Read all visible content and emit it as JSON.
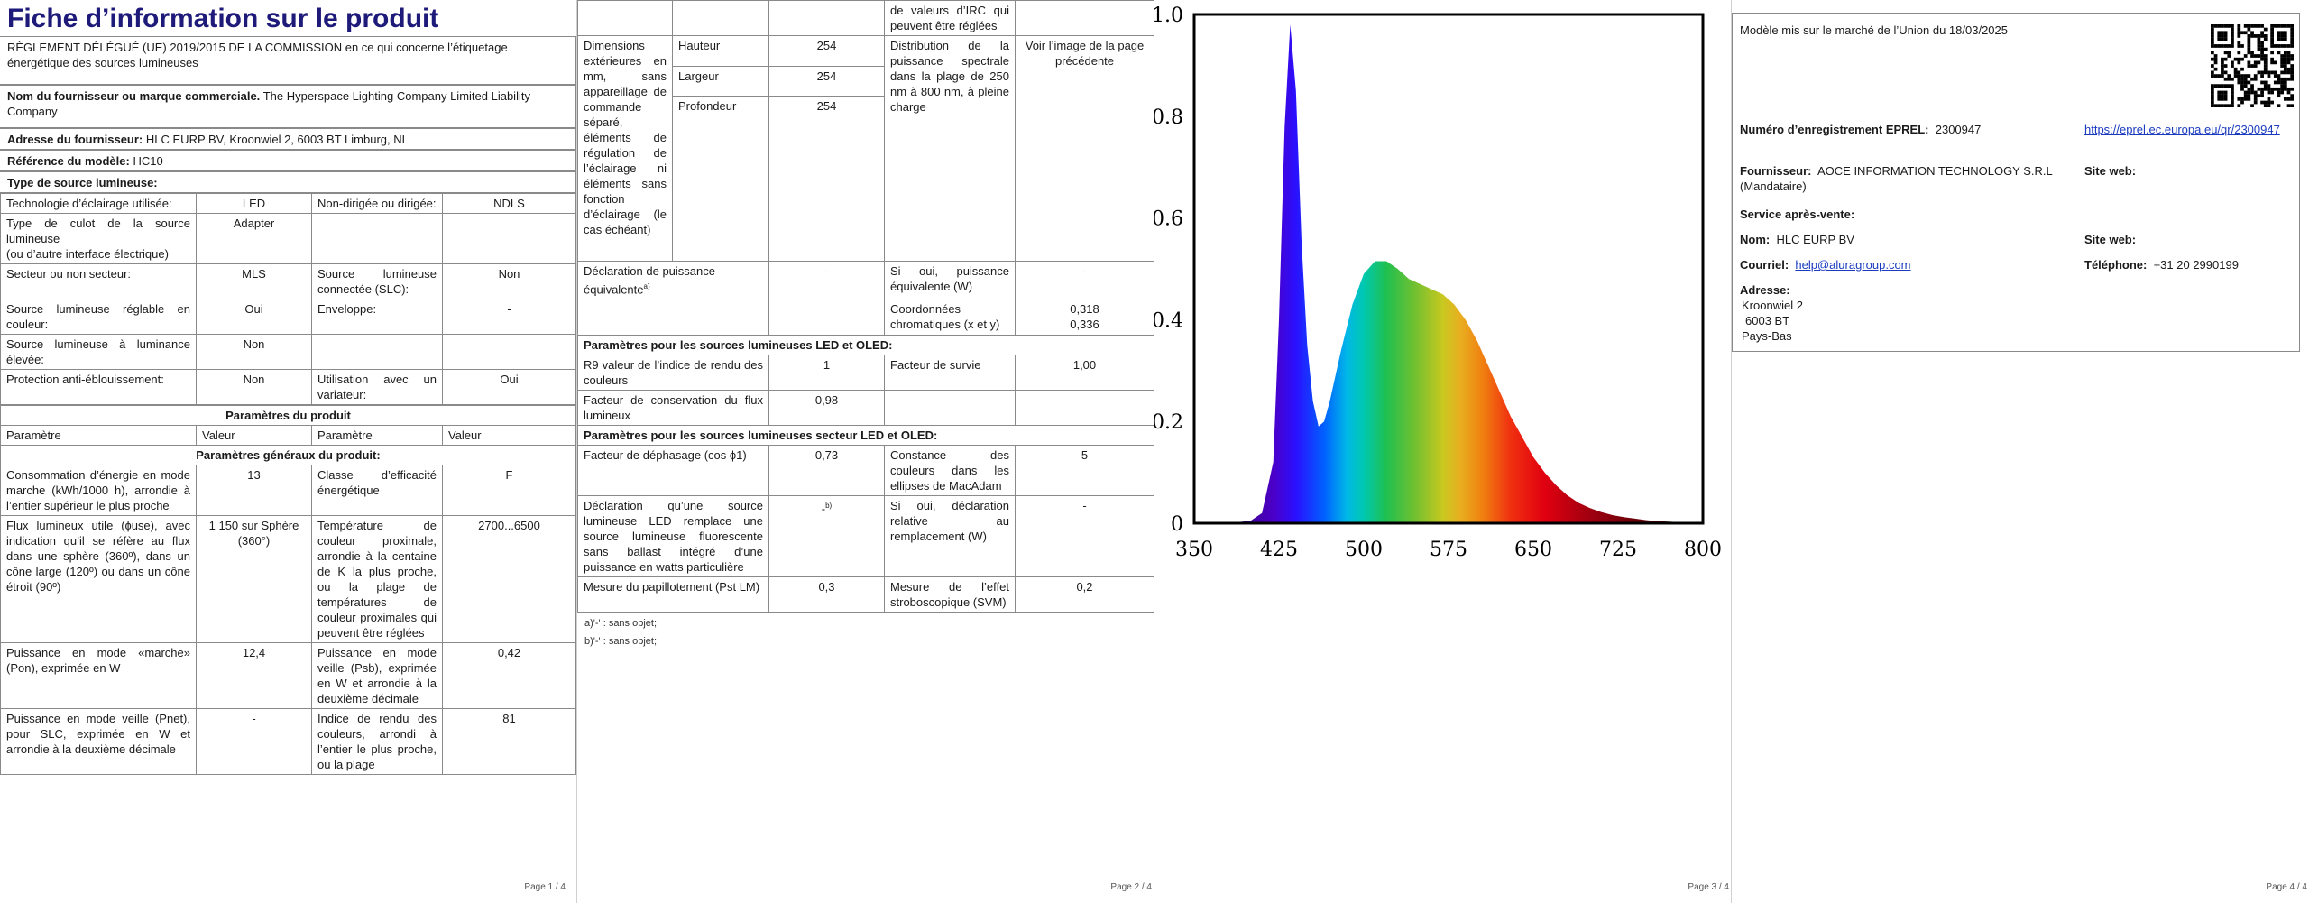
{
  "page1": {
    "title": "Fiche d’information sur le produit",
    "regulation": "RÈGLEMENT DÉLÉGUÉ (UE) 2019/2015 DE LA COMMISSION en ce qui concerne l’étiquetage énergétique des sources lumineuses",
    "supplier_label": "Nom du fournisseur ou marque commerciale.",
    "supplier_value": "The Hyperspace Lighting Company Limited Liability Company",
    "address_label": "Adresse du fournisseur:",
    "address_value": "HLC EURP BV, Kroonwiel 2, 6003 BT Limburg, NL",
    "model_label": "Référence du modèle:",
    "model_value": "HC10",
    "type_heading": "Type de source lumineuse:",
    "type_rows": [
      [
        "Technologie d’éclairage utilisée:",
        "LED",
        "Non-dirigée ou dirigée:",
        "NDLS"
      ],
      [
        "Type de culot de la source lumineuse\n(ou d’autre interface électrique)",
        "Adapter",
        "",
        ""
      ],
      [
        "Secteur ou non secteur:",
        "MLS",
        "Source lumineuse connectée (SLC):",
        "Non"
      ],
      [
        "Source lumineuse réglable en couleur:",
        "Oui",
        "Enveloppe:",
        "-"
      ],
      [
        "Source lumineuse à luminance élevée:",
        "Non",
        "",
        ""
      ],
      [
        "Protection anti-éblouissement:",
        "Non",
        "Utilisation avec un variateur:",
        "Oui"
      ]
    ],
    "params_heading": "Paramètres du produit",
    "col_headers": [
      "Paramètre",
      "Valeur",
      "Paramètre",
      "Valeur"
    ],
    "general_heading": "Paramètres généraux du produit:",
    "general_rows": [
      [
        "Consommation d’énergie en mode marche (kWh/1000 h), arrondie à l’entier supérieur le plus proche",
        "13",
        "Classe d’efficacité énergétique",
        "F"
      ],
      [
        "Flux lumineux utile (ɸuse), avec indication qu’il se réfère au flux dans une sphère (360º), dans un cône large (120º) ou dans un cône étroit (90º)",
        "1 150 sur Sphère (360°)",
        "Température de couleur proximale, arrondie à la centaine de K la plus proche, ou la plage de températures de couleur proximales qui peuvent être réglées",
        "2700...6500"
      ],
      [
        "Puissance en mode «marche» (Pon), exprimée en W",
        "12,4",
        "Puissance en mode veille (Psb), exprimée en W et arrondie à la deuxième décimale",
        "0,42"
      ],
      [
        "Puissance en mode veille (Pnet), pour SLC, exprimée en W et arrondie à la deuxième décimale",
        "-",
        "Indice de rendu des couleurs, arrondi à l’entier le plus proche, ou la plage",
        "81"
      ]
    ],
    "page_number": "Page 1 / 4"
  },
  "page2": {
    "cri_continued": "de valeurs d’IRC qui peuvent être réglées",
    "dims_label": "Dimensions extérieures en mm, sans appareillage de commande séparé, éléments de régulation de l’éclairage ni éléments sans fonction d’éclairage (le cas échéant)",
    "dims": [
      [
        "Hauteur",
        "254"
      ],
      [
        "Largeur",
        "254"
      ],
      [
        "Profondeur",
        "254"
      ]
    ],
    "spd_label": "Distribution de la puissance spectrale dans la plage de 250 nm à 800 nm, à pleine charge",
    "spd_value": "Voir l’image de la page précédente",
    "equiv_label": "Déclaration de puissance équivalente",
    "equiv_sup": "a)",
    "equiv_value": "-",
    "equiv_power_label": "Si oui, puissance équivalente (W)",
    "equiv_power_value": "-",
    "chroma_label": "Coordonnées chromatiques (x et y)",
    "chroma_x": "0,318",
    "chroma_y": "0,336",
    "led_heading": "Paramètres pour les sources lumineuses LED et OLED:",
    "led_rows": [
      [
        "R9 valeur de l’indice de rendu des couleurs",
        "1",
        "Facteur de survie",
        "1,00"
      ],
      [
        "Facteur de conservation du flux lumineux",
        "0,98",
        "",
        ""
      ]
    ],
    "mains_heading": "Paramètres pour les sources lumineuses secteur LED et OLED:",
    "mains_rows": [
      [
        "Facteur de déphasage (cos ϕ1)",
        "0,73",
        "Constance des couleurs dans les ellipses de MacAdam",
        "5"
      ],
      [
        "Déclaration qu’une source lumineuse LED remplace une source lumineuse fluorescente sans ballast intégré d’une puissance en watts particulière",
        "-b)",
        "Si oui, déclaration relative au remplacement (W)",
        "-"
      ],
      [
        "Mesure du papillotement (Pst LM)",
        "0,3",
        "Mesure de l’effet stroboscopique (SVM)",
        "0,2"
      ]
    ],
    "footnote_a": "a)'-' : sans objet;",
    "footnote_b": "b)'-' : sans objet;",
    "page_number": "Page 2 / 4"
  },
  "chart_data": {
    "type": "area",
    "title": "",
    "xlabel": "",
    "ylabel": "",
    "xlim": [
      350,
      800
    ],
    "ylim": [
      0,
      1.0
    ],
    "x_ticks": [
      350,
      425,
      500,
      575,
      650,
      725,
      800
    ],
    "y_ticks": [
      0,
      0.2,
      0.4,
      0.6,
      0.8,
      1.0
    ],
    "y_tick_labels": [
      "0",
      "0.2",
      "0.4",
      "0.6",
      "0.8",
      "1.0"
    ],
    "fill": "rainbow-by-wavelength",
    "series": [
      {
        "x": [
          350,
          380,
          400,
          410,
          420,
          425,
          430,
          435,
          440,
          445,
          450,
          455,
          460,
          465,
          470,
          480,
          490,
          500,
          510,
          520,
          530,
          540,
          550,
          560,
          570,
          580,
          590,
          600,
          610,
          620,
          630,
          640,
          650,
          660,
          670,
          680,
          690,
          700,
          710,
          720,
          730,
          740,
          750,
          760,
          770,
          780,
          790,
          800
        ],
        "values": [
          0,
          0,
          0.005,
          0.02,
          0.12,
          0.4,
          0.78,
          0.98,
          0.85,
          0.55,
          0.35,
          0.24,
          0.19,
          0.2,
          0.24,
          0.34,
          0.43,
          0.49,
          0.515,
          0.515,
          0.5,
          0.48,
          0.47,
          0.46,
          0.45,
          0.43,
          0.4,
          0.36,
          0.31,
          0.26,
          0.21,
          0.17,
          0.13,
          0.1,
          0.075,
          0.055,
          0.04,
          0.03,
          0.022,
          0.016,
          0.012,
          0.009,
          0.006,
          0.004,
          0.003,
          0.002,
          0.001,
          0.001
        ]
      }
    ],
    "page_number": "Page 3 / 4"
  },
  "page4": {
    "market_date": "Modèle mis sur le marché de l’Union du 18/03/2025",
    "reg_label": "Numéro d’enregistrement EPREL:",
    "reg_value": "2300947",
    "url": "https://eprel.ec.europa.eu/qr/2300947",
    "supplier_label": "Fournisseur:",
    "supplier_value": "AOCE INFORMATION TECHNOLOGY S.R.L (Mandataire)",
    "website_label": "Site web:",
    "service_label": "Service après-vente:",
    "name_label": "Nom:",
    "name_value": "HLC EURP BV",
    "website2_label": "Site web:",
    "email_label": "Courriel:",
    "email_value": "help@aluragroup.com",
    "phone_label": "Téléphone:",
    "phone_value": "+31 20 2990199",
    "address_label": "Adresse:",
    "address_lines": [
      "Kroonwiel 2",
      "6003 BT",
      "Pays-Bas"
    ],
    "page_number": "Page 4 / 4"
  }
}
